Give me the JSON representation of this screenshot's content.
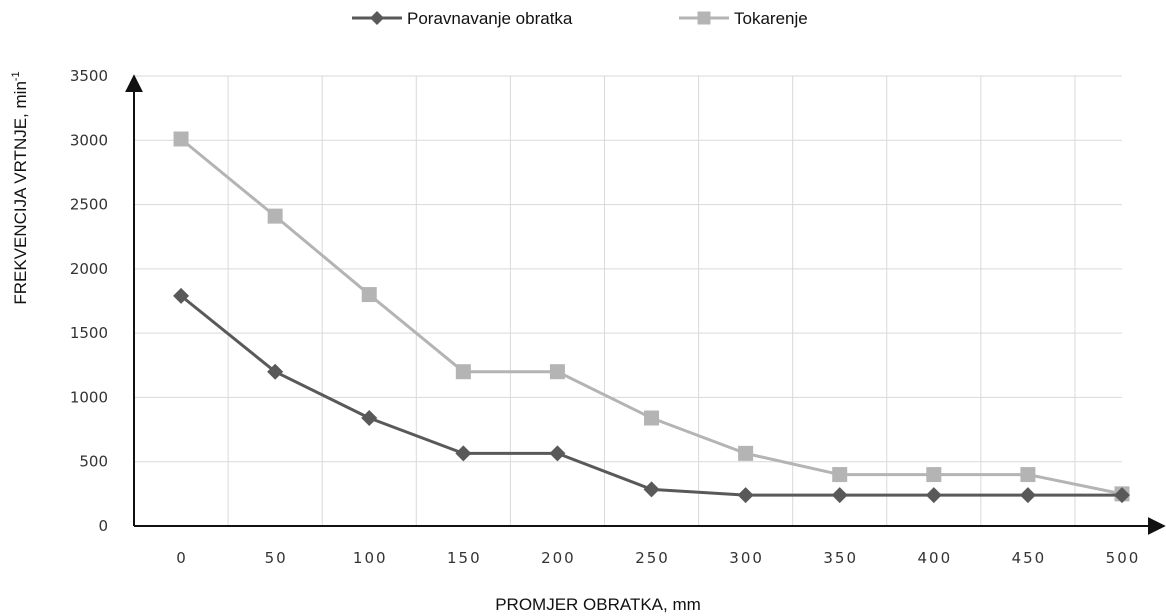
{
  "chart_data": {
    "type": "line",
    "x": [
      0,
      50,
      100,
      150,
      200,
      250,
      300,
      350,
      400,
      450,
      500
    ],
    "series": [
      {
        "name": "Poravnavanje obratka",
        "values": [
          1790,
          1200,
          840,
          565,
          565,
          285,
          240,
          240,
          240,
          240,
          240
        ],
        "color": "#595959",
        "marker": "diamond"
      },
      {
        "name": "Tokarenje",
        "values": [
          3010,
          2410,
          1800,
          1200,
          1200,
          840,
          565,
          400,
          400,
          400,
          250
        ],
        "color": "#b4b4b4",
        "marker": "square"
      }
    ],
    "x_ticks": [
      "0",
      "50",
      "100",
      "150",
      "200",
      "250",
      "300",
      "350",
      "400",
      "450",
      "500"
    ],
    "y_ticks": [
      "0",
      "500",
      "1000",
      "1500",
      "2000",
      "2500",
      "3000",
      "3500"
    ],
    "ylim": [
      0,
      3500
    ],
    "xlabel": "PROMJER OBRATKA, mm",
    "ylabel_main": "FREKVENCIJA VRTNJE, min",
    "ylabel_sup": "-1",
    "grid": true,
    "legend_position": "top-center"
  }
}
